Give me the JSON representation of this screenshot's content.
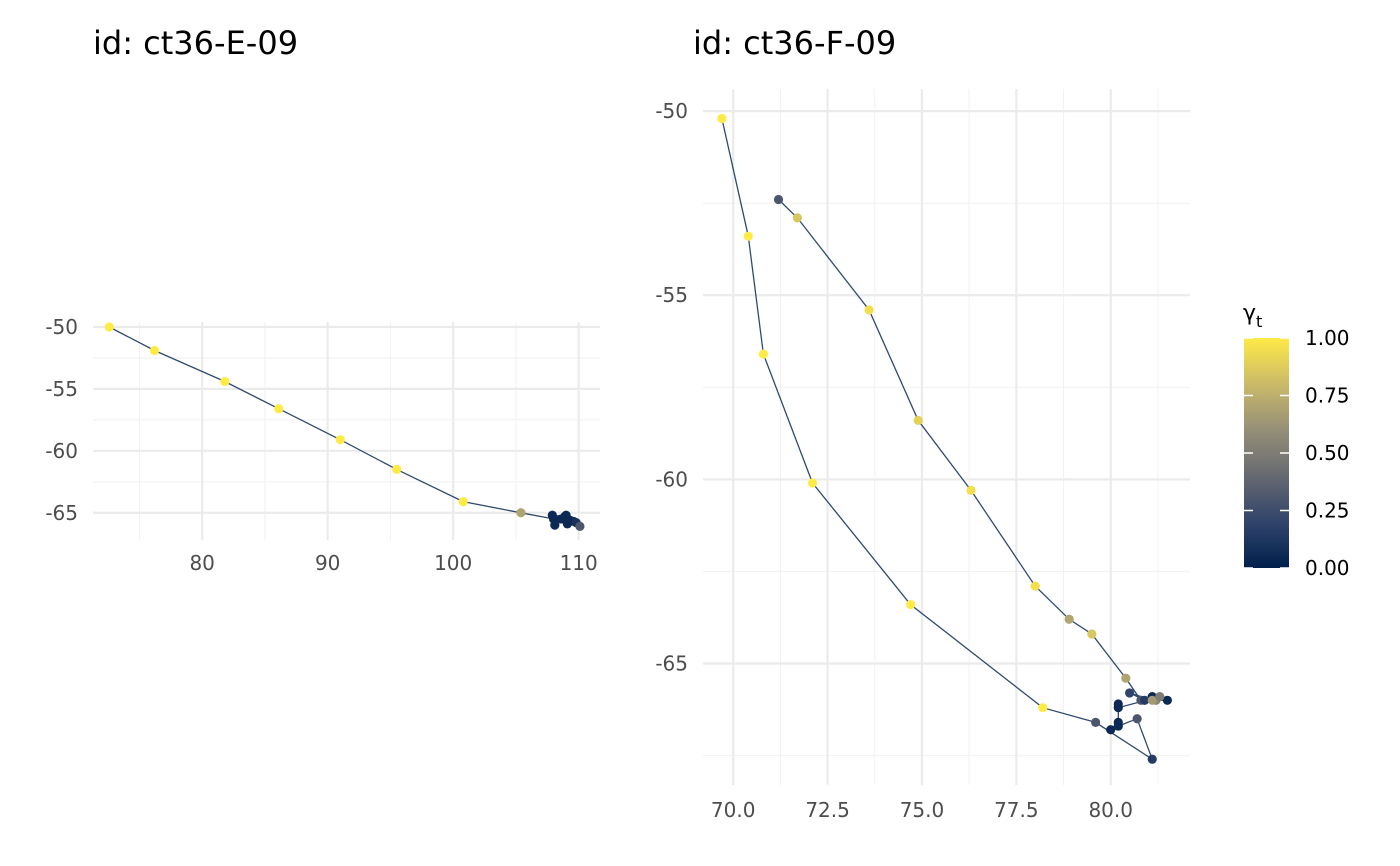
{
  "chart_data": [
    {
      "type": "scatter",
      "title": "id: ct36-E-09",
      "xlabel": "",
      "ylabel": "",
      "xlim": [
        71.3,
        111.7
      ],
      "ylim": [
        -67.2,
        -49.6
      ],
      "xticks": [
        80,
        90,
        100,
        110
      ],
      "xtick_labels": [
        "80",
        "90",
        "100",
        "110"
      ],
      "yticks": [
        -50,
        -55,
        -60,
        -65
      ],
      "ytick_labels": [
        "-50",
        "-55",
        "-60",
        "-65"
      ],
      "grid": true,
      "connected": true,
      "color_variable": "gamma_t",
      "points": [
        {
          "x": 72.6,
          "y": -50.0,
          "gamma": 1.0
        },
        {
          "x": 76.2,
          "y": -51.9,
          "gamma": 1.0
        },
        {
          "x": 81.8,
          "y": -54.4,
          "gamma": 1.0
        },
        {
          "x": 86.1,
          "y": -56.6,
          "gamma": 1.0
        },
        {
          "x": 91.0,
          "y": -59.1,
          "gamma": 1.0
        },
        {
          "x": 95.5,
          "y": -61.5,
          "gamma": 1.0
        },
        {
          "x": 100.8,
          "y": -64.1,
          "gamma": 1.0
        },
        {
          "x": 105.4,
          "y": -65.0,
          "gamma": 0.7
        },
        {
          "x": 108.0,
          "y": -65.5,
          "gamma": 0.05
        },
        {
          "x": 108.1,
          "y": -66.0,
          "gamma": 0.05
        },
        {
          "x": 108.6,
          "y": -65.5,
          "gamma": 0.05
        },
        {
          "x": 109.0,
          "y": -65.2,
          "gamma": 0.05
        },
        {
          "x": 109.3,
          "y": -65.6,
          "gamma": 0.05
        },
        {
          "x": 109.6,
          "y": -65.7,
          "gamma": 0.05
        },
        {
          "x": 108.9,
          "y": -65.3,
          "gamma": 0.05
        },
        {
          "x": 107.9,
          "y": -65.2,
          "gamma": 0.05
        },
        {
          "x": 109.1,
          "y": -65.9,
          "gamma": 0.05
        },
        {
          "x": 109.8,
          "y": -65.8,
          "gamma": 0.1
        },
        {
          "x": 110.1,
          "y": -66.1,
          "gamma": 0.3
        }
      ]
    },
    {
      "type": "scatter",
      "title": "id: ct36-F-09",
      "xlabel": "",
      "ylabel": "",
      "xlim": [
        69.2,
        82.1
      ],
      "ylim": [
        -68.3,
        -49.4
      ],
      "xticks": [
        70.0,
        72.5,
        75.0,
        77.5,
        80.0
      ],
      "xtick_labels": [
        "70.0",
        "72.5",
        "75.0",
        "77.5",
        "80.0"
      ],
      "yticks": [
        -50,
        -55,
        -60,
        -65
      ],
      "ytick_labels": [
        "-50",
        "-55",
        "-60",
        "-65"
      ],
      "grid": true,
      "connected": true,
      "color_variable": "gamma_t",
      "points": [
        {
          "x": 71.2,
          "y": -52.4,
          "gamma": 0.3
        },
        {
          "x": 71.7,
          "y": -52.9,
          "gamma": 0.85
        },
        {
          "x": 73.6,
          "y": -55.4,
          "gamma": 0.95
        },
        {
          "x": 74.9,
          "y": -58.4,
          "gamma": 0.9
        },
        {
          "x": 76.3,
          "y": -60.3,
          "gamma": 0.95
        },
        {
          "x": 78.0,
          "y": -62.9,
          "gamma": 0.95
        },
        {
          "x": 78.9,
          "y": -63.8,
          "gamma": 0.7
        },
        {
          "x": 79.5,
          "y": -64.2,
          "gamma": 0.85
        },
        {
          "x": 80.4,
          "y": -65.4,
          "gamma": 0.7
        },
        {
          "x": 80.8,
          "y": -66.0,
          "gamma": 0.3
        },
        {
          "x": 81.2,
          "y": -66.0,
          "gamma": 0.55
        },
        {
          "x": 81.5,
          "y": -66.0,
          "gamma": 0.05
        },
        {
          "x": 81.1,
          "y": -65.9,
          "gamma": 0.05
        },
        {
          "x": 80.9,
          "y": -66.0,
          "gamma": 0.15
        },
        {
          "x": 80.5,
          "y": -65.8,
          "gamma": 0.2
        },
        {
          "x": 81.1,
          "y": -66.0,
          "gamma": 0.65
        },
        {
          "x": 81.3,
          "y": -65.9,
          "gamma": 0.5
        },
        {
          "x": 80.2,
          "y": -66.2,
          "gamma": 0.05
        },
        {
          "x": 80.2,
          "y": -66.1,
          "gamma": 0.05
        },
        {
          "x": 80.2,
          "y": -66.6,
          "gamma": 0.05
        },
        {
          "x": 80.0,
          "y": -66.8,
          "gamma": 0.05
        },
        {
          "x": 80.2,
          "y": -66.7,
          "gamma": 0.05
        },
        {
          "x": 80.7,
          "y": -66.5,
          "gamma": 0.3
        },
        {
          "x": 81.1,
          "y": -67.6,
          "gamma": 0.15
        },
        {
          "x": 79.6,
          "y": -66.6,
          "gamma": 0.3
        },
        {
          "x": 78.2,
          "y": -66.2,
          "gamma": 1.0
        },
        {
          "x": 74.7,
          "y": -63.4,
          "gamma": 1.0
        },
        {
          "x": 72.1,
          "y": -60.1,
          "gamma": 1.0
        },
        {
          "x": 70.8,
          "y": -56.6,
          "gamma": 1.0
        },
        {
          "x": 70.4,
          "y": -53.4,
          "gamma": 1.0
        },
        {
          "x": 69.7,
          "y": -50.2,
          "gamma": 1.0
        }
      ]
    }
  ],
  "legend": {
    "title_main": "γ",
    "title_sub": "t",
    "ticks": [
      {
        "value": 1.0,
        "label": "1.00"
      },
      {
        "value": 0.75,
        "label": "0.75"
      },
      {
        "value": 0.5,
        "label": "0.50"
      },
      {
        "value": 0.25,
        "label": "0.25"
      },
      {
        "value": 0.0,
        "label": "0.00"
      }
    ],
    "colormap": [
      "#00204d",
      "#31446b",
      "#666970",
      "#958f78",
      "#cbba69",
      "#ffea46"
    ]
  },
  "colors": {
    "path_line": "#2f4a6f",
    "grid_major": "#ebebeb",
    "grid_minor": "#f2f2f2",
    "tick_text": "#4d4d4d"
  }
}
